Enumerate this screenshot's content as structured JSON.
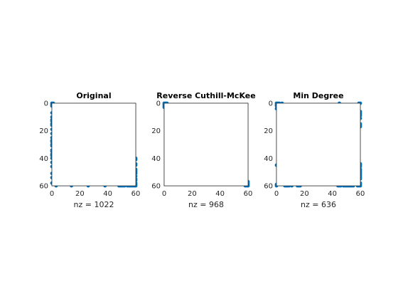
{
  "colors": {
    "marker": "#0072BD",
    "axes": "#262626",
    "background": "#ffffff"
  },
  "chart_data": [
    {
      "type": "scatter",
      "subtype": "spy",
      "title": "Original",
      "xlabel": "nz = 1022",
      "xlim": [
        0,
        60
      ],
      "ylim": [
        0,
        60
      ],
      "y_reversed": true,
      "xticks": [
        0,
        20,
        40,
        60
      ],
      "yticks": [
        0,
        20,
        40,
        60
      ],
      "pattern": "arrowhead",
      "nonzeros": 1022
    },
    {
      "type": "scatter",
      "subtype": "spy",
      "title": "Reverse Cuthill-McKee",
      "xlabel": "nz = 968",
      "xlim": [
        0,
        60
      ],
      "ylim": [
        0,
        60
      ],
      "y_reversed": true,
      "xticks": [
        0,
        20,
        40,
        60
      ],
      "yticks": [
        0,
        20,
        40,
        60
      ],
      "pattern": "banded",
      "nonzeros": 968
    },
    {
      "type": "scatter",
      "subtype": "spy",
      "title": "Min Degree",
      "xlabel": "nz = 636",
      "xlim": [
        0,
        60
      ],
      "ylim": [
        0,
        60
      ],
      "y_reversed": true,
      "xticks": [
        0,
        20,
        40,
        60
      ],
      "yticks": [
        0,
        20,
        40,
        60
      ],
      "pattern": "scattered",
      "nonzeros": 636
    }
  ]
}
